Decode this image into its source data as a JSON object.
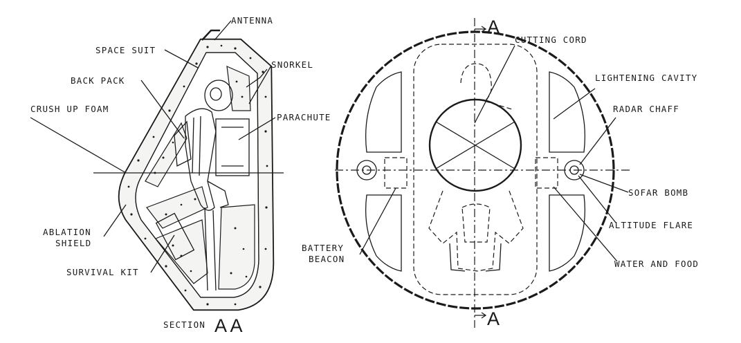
{
  "section_view": {
    "title_prefix": "SECTION",
    "title_letters": "A A",
    "labels": {
      "antenna": "ANTENNA",
      "space_suit": "SPACE SUIT",
      "snorkel": "SNORKEL",
      "back_pack": "BACK PACK",
      "crush_up_foam": "CRUSH UP FOAM",
      "parachute": "PARACHUTE",
      "ablation_shield_1": "ABLATION",
      "ablation_shield_2": "SHIELD",
      "survival_kit": "SURVIVAL KIT"
    }
  },
  "plan_view": {
    "section_mark_top": "A",
    "section_mark_bottom": "A",
    "labels": {
      "cutting_cord": "CUTTING CORD",
      "lightening_cavity": "LIGHTENING CAVITY",
      "radar_chaff": "RADAR CHAFF",
      "sofar_bomb": "SOFAR BOMB",
      "altitude_flare": "ALTITUDE FLARE",
      "water_and_food": "WATER AND FOOD",
      "battery_beacon_1": "BATTERY",
      "battery_beacon_2": "BEACON"
    }
  }
}
